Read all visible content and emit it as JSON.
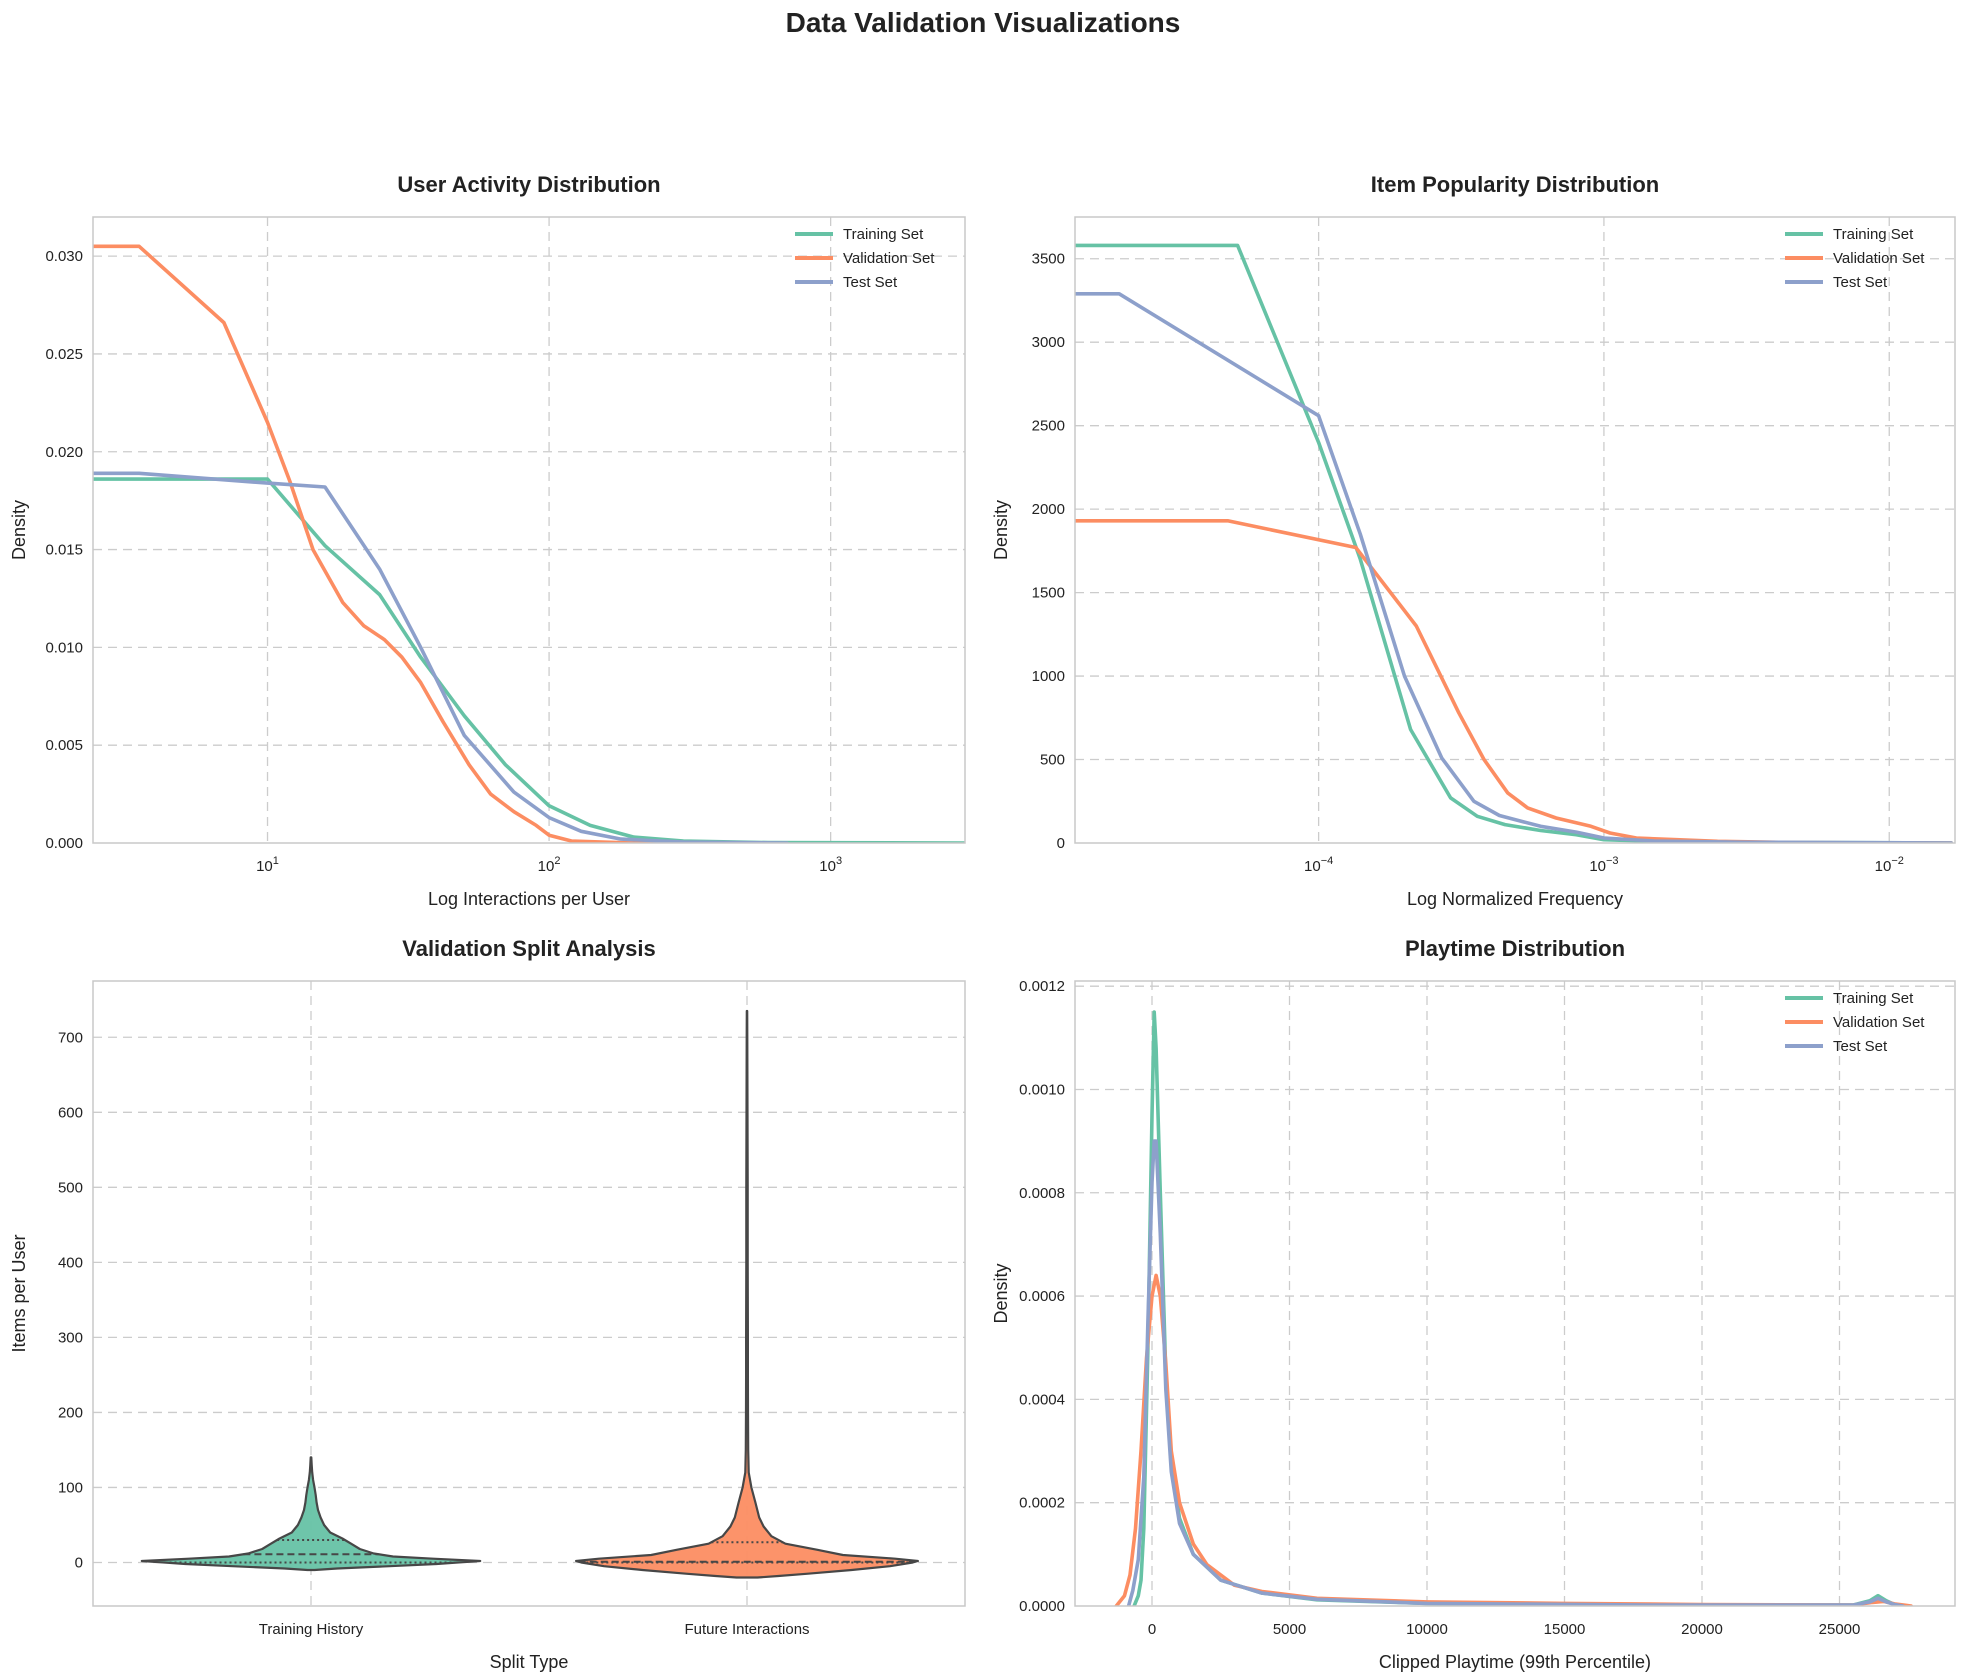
{
  "figure": {
    "title": "Data Validation Visualizations",
    "colors": {
      "training": "#66c2a5",
      "validation": "#fc8d62",
      "test": "#8da0cb",
      "violin_edge": "#474747"
    }
  },
  "chart_data": [
    {
      "type": "line",
      "title": "User Activity Distribution",
      "xlabel": "Log Interactions per User",
      "ylabel": "Density",
      "xscale": "log",
      "xlim": [
        2.4,
        3000
      ],
      "ylim": [
        0,
        0.032
      ],
      "xticks": [
        {
          "v": 10,
          "e": "1"
        },
        {
          "v": 100,
          "e": "2"
        },
        {
          "v": 1000,
          "e": "3"
        }
      ],
      "yticks": [
        0,
        0.005,
        0.01,
        0.015,
        0.02,
        0.025,
        0.03
      ],
      "ytick_labels": [
        "0.000",
        "0.005",
        "0.010",
        "0.015",
        "0.020",
        "0.025",
        "0.030"
      ],
      "grid": true,
      "legend": "top-right",
      "series": [
        {
          "name": "Training Set",
          "color": "#66c2a5",
          "points": [
            [
              2.4,
              0.0186
            ],
            [
              10,
              0.0186
            ],
            [
              16,
              0.0152
            ],
            [
              25,
              0.0127
            ],
            [
              35,
              0.0095
            ],
            [
              50,
              0.0065
            ],
            [
              70,
              0.004
            ],
            [
              100,
              0.0019
            ],
            [
              140,
              0.0009
            ],
            [
              200,
              0.0003
            ],
            [
              300,
              0.0001
            ],
            [
              600,
              2e-05
            ],
            [
              3000,
              0.0
            ]
          ]
        },
        {
          "name": "Validation Set",
          "color": "#fc8d62",
          "points": [
            [
              2.4,
              0.0305
            ],
            [
              3.5,
              0.0305
            ],
            [
              7,
              0.0266
            ],
            [
              10,
              0.0215
            ],
            [
              12,
              0.0185
            ],
            [
              14.5,
              0.015
            ],
            [
              18.5,
              0.0123
            ],
            [
              22,
              0.0111
            ],
            [
              26,
              0.0104
            ],
            [
              30,
              0.0095
            ],
            [
              35,
              0.0082
            ],
            [
              42,
              0.0062
            ],
            [
              52,
              0.004
            ],
            [
              62,
              0.0025
            ],
            [
              75,
              0.0016
            ],
            [
              90,
              0.0009
            ],
            [
              100,
              0.0004
            ],
            [
              120,
              0.0001
            ],
            [
              200,
              0.0
            ],
            [
              400,
              0.0
            ]
          ]
        },
        {
          "name": "Test Set",
          "color": "#8da0cb",
          "points": [
            [
              2.4,
              0.0189
            ],
            [
              3.5,
              0.0189
            ],
            [
              10,
              0.0184
            ],
            [
              16,
              0.0182
            ],
            [
              25,
              0.014
            ],
            [
              35,
              0.01
            ],
            [
              50,
              0.0055
            ],
            [
              75,
              0.0026
            ],
            [
              100,
              0.0013
            ],
            [
              130,
              0.0006
            ],
            [
              180,
              0.0002
            ],
            [
              300,
              5e-05
            ],
            [
              700,
              0.0
            ]
          ]
        }
      ]
    },
    {
      "type": "line",
      "title": "Item Popularity Distribution",
      "xlabel": "Log Normalized Frequency",
      "ylabel": "Density",
      "xscale": "log",
      "xlim": [
        1.4e-05,
        0.017
      ],
      "ylim": [
        0,
        3750
      ],
      "xticks": [
        {
          "v": 0.0001,
          "e": "−4"
        },
        {
          "v": 0.001,
          "e": "−3"
        },
        {
          "v": 0.01,
          "e": "−2"
        }
      ],
      "yticks": [
        0,
        500,
        1000,
        1500,
        2000,
        2500,
        3000,
        3500
      ],
      "ytick_labels": [
        "0",
        "500",
        "1000",
        "1500",
        "2000",
        "2500",
        "3000",
        "3500"
      ],
      "grid": true,
      "legend": "top-right",
      "series": [
        {
          "name": "Training Set",
          "color": "#66c2a5",
          "points": [
            [
              1.4e-05,
              3580
            ],
            [
              5.2e-05,
              3580
            ],
            [
              0.0001,
              2400
            ],
            [
              0.00014,
              1700
            ],
            [
              0.00021,
              680
            ],
            [
              0.00029,
              270
            ],
            [
              0.00036,
              160
            ],
            [
              0.00045,
              110
            ],
            [
              0.0006,
              75
            ],
            [
              0.0008,
              50
            ],
            [
              0.001,
              20
            ],
            [
              0.0015,
              10
            ],
            [
              0.002,
              5
            ],
            [
              0.0165,
              0
            ]
          ]
        },
        {
          "name": "Validation Set",
          "color": "#fc8d62",
          "points": [
            [
              1.4e-05,
              1930
            ],
            [
              4.8e-05,
              1930
            ],
            [
              0.000135,
              1770
            ],
            [
              0.00022,
              1300
            ],
            [
              0.00031,
              780
            ],
            [
              0.00038,
              500
            ],
            [
              0.00046,
              300
            ],
            [
              0.00054,
              210
            ],
            [
              0.00068,
              150
            ],
            [
              0.0009,
              100
            ],
            [
              0.00105,
              60
            ],
            [
              0.0013,
              30
            ],
            [
              0.0018,
              20
            ],
            [
              0.0025,
              10
            ],
            [
              0.005,
              2
            ],
            [
              0.0165,
              0
            ]
          ]
        },
        {
          "name": "Test Set",
          "color": "#8da0cb",
          "points": [
            [
              1.4e-05,
              3290
            ],
            [
              2e-05,
              3290
            ],
            [
              0.0001,
              2560
            ],
            [
              0.00014,
              1850
            ],
            [
              0.0002,
              1000
            ],
            [
              0.00027,
              510
            ],
            [
              0.00035,
              250
            ],
            [
              0.00043,
              165
            ],
            [
              0.0006,
              100
            ],
            [
              0.0008,
              65
            ],
            [
              0.001,
              30
            ],
            [
              0.0015,
              12
            ],
            [
              0.003,
              5
            ],
            [
              0.0165,
              0
            ]
          ]
        }
      ]
    },
    {
      "type": "violin",
      "title": "Validation Split Analysis",
      "xlabel": "Split Type",
      "ylabel": "Items per User",
      "categories": [
        "Training History",
        "Future Interactions"
      ],
      "ylim": [
        -58,
        775
      ],
      "yticks": [
        0,
        100,
        200,
        300,
        400,
        500,
        600,
        700
      ],
      "ytick_labels": [
        "0",
        "100",
        "200",
        "300",
        "400",
        "500",
        "600",
        "700"
      ],
      "grid": true,
      "violins": [
        {
          "category": "Training History",
          "color": "#66c2a5",
          "quartiles": [
            0,
            11,
            30
          ],
          "profile": [
            [
              -10,
              0.02
            ],
            [
              -8,
              0.15
            ],
            [
              -5,
              0.45
            ],
            [
              -2,
              0.72
            ],
            [
              0,
              0.84
            ],
            [
              2,
              0.97
            ],
            [
              5,
              0.7
            ],
            [
              8,
              0.47
            ],
            [
              12,
              0.36
            ],
            [
              18,
              0.28
            ],
            [
              25,
              0.23
            ],
            [
              32,
              0.18
            ],
            [
              40,
              0.11
            ],
            [
              50,
              0.075
            ],
            [
              60,
              0.055
            ],
            [
              70,
              0.04
            ],
            [
              80,
              0.032
            ],
            [
              90,
              0.027
            ],
            [
              100,
              0.02
            ],
            [
              110,
              0.012
            ],
            [
              120,
              0.007
            ],
            [
              130,
              0.004
            ],
            [
              140,
              0.002
            ]
          ]
        },
        {
          "category": "Future Interactions",
          "color": "#fc8d62",
          "quartiles": [
            0,
            1,
            27
          ],
          "profile": [
            [
              -20,
              0.06
            ],
            [
              -18,
              0.18
            ],
            [
              -15,
              0.35
            ],
            [
              -10,
              0.6
            ],
            [
              -5,
              0.82
            ],
            [
              0,
              0.95
            ],
            [
              2,
              0.98
            ],
            [
              5,
              0.85
            ],
            [
              10,
              0.55
            ],
            [
              17,
              0.4
            ],
            [
              25,
              0.22
            ],
            [
              35,
              0.14
            ],
            [
              48,
              0.095
            ],
            [
              60,
              0.07
            ],
            [
              80,
              0.048
            ],
            [
              100,
              0.025
            ],
            [
              120,
              0.01
            ],
            [
              150,
              0.007
            ],
            [
              200,
              0.006
            ],
            [
              250,
              0.005
            ],
            [
              300,
              0.005
            ],
            [
              400,
              0.004
            ],
            [
              500,
              0.004
            ],
            [
              600,
              0.003
            ],
            [
              700,
              0.002
            ],
            [
              735,
              0.001
            ]
          ]
        }
      ]
    },
    {
      "type": "line",
      "title": "Playtime Distribution",
      "xlabel": "Clipped Playtime (99th Percentile)",
      "ylabel": "Density",
      "xlim": [
        -2800,
        29200
      ],
      "ylim": [
        0,
        0.00121
      ],
      "xticks": [
        0,
        5000,
        10000,
        15000,
        20000,
        25000
      ],
      "xtick_labels": [
        "0",
        "5000",
        "10000",
        "15000",
        "20000",
        "25000"
      ],
      "yticks": [
        0,
        0.0002,
        0.0004,
        0.0006,
        0.0008,
        0.001,
        0.0012
      ],
      "ytick_labels": [
        "0.0000",
        "0.0002",
        "0.0004",
        "0.0006",
        "0.0008",
        "0.0010",
        "0.0012"
      ],
      "grid": true,
      "legend": "top-right",
      "series": [
        {
          "name": "Training Set",
          "color": "#66c2a5",
          "points": [
            [
              -650,
              0
            ],
            [
              -500,
              2e-05
            ],
            [
              -400,
              5e-05
            ],
            [
              -300,
              0.00015
            ],
            [
              -150,
              0.0005
            ],
            [
              0,
              0.00095
            ],
            [
              80,
              0.00115
            ],
            [
              150,
              0.00108
            ],
            [
              300,
              0.0008
            ],
            [
              500,
              0.00045
            ],
            [
              700,
              0.00028
            ],
            [
              1000,
              0.00017
            ],
            [
              1500,
              0.0001
            ],
            [
              2500,
              5e-05
            ],
            [
              4000,
              2.5e-05
            ],
            [
              6000,
              1.2e-05
            ],
            [
              10000,
              5e-06
            ],
            [
              18000,
              2e-06
            ],
            [
              25500,
              2e-06
            ],
            [
              26100,
              1e-05
            ],
            [
              26400,
              2e-05
            ],
            [
              26700,
              1e-05
            ],
            [
              27000,
              3e-06
            ],
            [
              27300,
              0
            ]
          ]
        },
        {
          "name": "Validation Set",
          "color": "#fc8d62",
          "points": [
            [
              -1300,
              0
            ],
            [
              -1000,
              2e-05
            ],
            [
              -800,
              6e-05
            ],
            [
              -600,
              0.00015
            ],
            [
              -400,
              0.0003
            ],
            [
              -200,
              0.00048
            ],
            [
              0,
              0.0006
            ],
            [
              150,
              0.00064
            ],
            [
              300,
              0.0006
            ],
            [
              500,
              0.00047
            ],
            [
              700,
              0.0003
            ],
            [
              1000,
              0.0002
            ],
            [
              1500,
              0.00012
            ],
            [
              2000,
              8e-05
            ],
            [
              3000,
              4e-05
            ],
            [
              4000,
              2.8e-05
            ],
            [
              6000,
              1.5e-05
            ],
            [
              10000,
              8e-06
            ],
            [
              15000,
              5e-06
            ],
            [
              20000,
              3e-06
            ],
            [
              25500,
              2e-06
            ],
            [
              26200,
              7e-06
            ],
            [
              26600,
              9e-06
            ],
            [
              27000,
              4e-06
            ],
            [
              27600,
              0
            ]
          ]
        },
        {
          "name": "Test Set",
          "color": "#8da0cb",
          "points": [
            [
              -850,
              0
            ],
            [
              -700,
              3e-05
            ],
            [
              -500,
              9e-05
            ],
            [
              -300,
              0.00025
            ],
            [
              -150,
              0.00055
            ],
            [
              0,
              0.00082
            ],
            [
              80,
              0.0009
            ],
            [
              150,
              0.0009
            ],
            [
              300,
              0.00072
            ],
            [
              500,
              0.00042
            ],
            [
              700,
              0.00026
            ],
            [
              1000,
              0.00016
            ],
            [
              1500,
              0.0001
            ],
            [
              2500,
              5e-05
            ],
            [
              4000,
              2.5e-05
            ],
            [
              6000,
              1.3e-05
            ],
            [
              10000,
              5e-06
            ],
            [
              18000,
              2e-06
            ],
            [
              25500,
              2e-06
            ],
            [
              26100,
              8e-06
            ],
            [
              26400,
              1.5e-05
            ],
            [
              26700,
              8e-06
            ],
            [
              27000,
              3e-06
            ],
            [
              27300,
              0
            ]
          ]
        }
      ]
    }
  ]
}
